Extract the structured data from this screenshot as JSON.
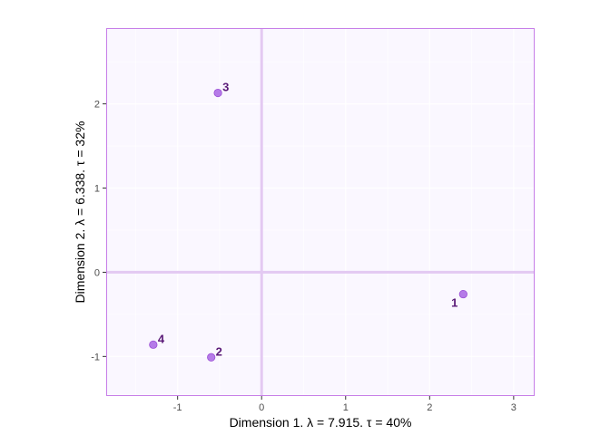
{
  "chart_data": {
    "type": "scatter",
    "xlabel": "Dimension 1.   λ = 7.915.  τ = 40%",
    "ylabel": "Dimension 2.   λ = 6.338.  τ = 32%",
    "xlim": [
      -1.85,
      3.25
    ],
    "ylim": [
      -1.47,
      2.9
    ],
    "xticks": [
      -1,
      0,
      1,
      2,
      3
    ],
    "yticks": [
      -1,
      0,
      1,
      2
    ],
    "grid": true,
    "reference_lines": {
      "x": 0,
      "y": 0
    },
    "points": [
      {
        "label": "1",
        "x": 2.4,
        "y": -0.26,
        "label_position": "bottom-left"
      },
      {
        "label": "2",
        "x": -0.6,
        "y": -1.01,
        "label_position": "top-right"
      },
      {
        "label": "3",
        "x": -0.52,
        "y": 2.13,
        "label_position": "top-right"
      },
      {
        "label": "4",
        "x": -1.29,
        "y": -0.86,
        "label_position": "top-right"
      }
    ],
    "colors": {
      "panel_background": "#faf7ff",
      "panel_border": "#c77ee8",
      "grid": "#ffffff",
      "reference_line": "#e3c9f2",
      "point_fill": "#b57be8",
      "point_stroke": "#9b4fd6",
      "point_label": "#5a1a78"
    }
  }
}
